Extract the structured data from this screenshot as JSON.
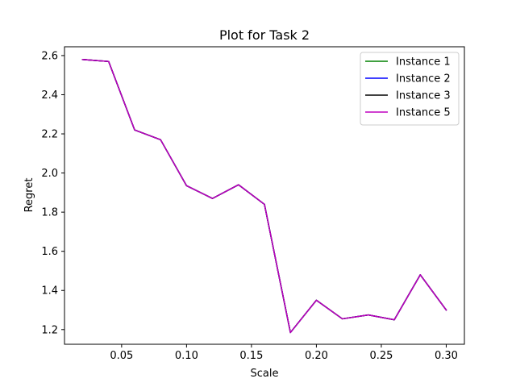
{
  "chart_data": {
    "type": "line",
    "title": "Plot for Task 2",
    "xlabel": "Scale",
    "ylabel": "Regret",
    "xlim": [
      0.006,
      0.314
    ],
    "ylim": [
      1.125,
      2.645
    ],
    "xticks": [
      0.05,
      0.1,
      0.15,
      0.2,
      0.25,
      0.3
    ],
    "xtick_labels": [
      "0.05",
      "0.10",
      "0.15",
      "0.20",
      "0.25",
      "0.30"
    ],
    "yticks": [
      1.2,
      1.4,
      1.6,
      1.8,
      2.0,
      2.2,
      2.4,
      2.6
    ],
    "ytick_labels": [
      "1.2",
      "1.4",
      "1.6",
      "1.8",
      "2.0",
      "2.2",
      "2.4",
      "2.6"
    ],
    "grid": false,
    "legend_position": "top-right",
    "x": [
      0.02,
      0.04,
      0.06,
      0.08,
      0.1,
      0.12,
      0.14,
      0.16,
      0.18,
      0.2,
      0.22,
      0.24,
      0.26,
      0.28,
      0.3
    ],
    "series": [
      {
        "name": "Instance 1",
        "color": "#008000",
        "values": [
          2.58,
          2.57,
          2.22,
          2.17,
          1.935,
          1.87,
          1.94,
          1.84,
          1.185,
          1.35,
          1.255,
          1.275,
          1.25,
          1.48,
          1.3
        ]
      },
      {
        "name": "Instance 2",
        "color": "#0000ff",
        "values": [
          2.58,
          2.57,
          2.22,
          2.17,
          1.935,
          1.87,
          1.94,
          1.84,
          1.185,
          1.35,
          1.255,
          1.275,
          1.25,
          1.48,
          1.3
        ]
      },
      {
        "name": "Instance 3",
        "color": "#000000",
        "values": [
          2.58,
          2.57,
          2.22,
          2.17,
          1.935,
          1.87,
          1.94,
          1.84,
          1.185,
          1.35,
          1.255,
          1.275,
          1.25,
          1.48,
          1.3
        ]
      },
      {
        "name": "Instance 5",
        "color": "#bf00bf",
        "values": [
          2.58,
          2.57,
          2.22,
          2.17,
          1.935,
          1.87,
          1.94,
          1.84,
          1.185,
          1.35,
          1.255,
          1.275,
          1.25,
          1.48,
          1.3
        ]
      }
    ]
  }
}
